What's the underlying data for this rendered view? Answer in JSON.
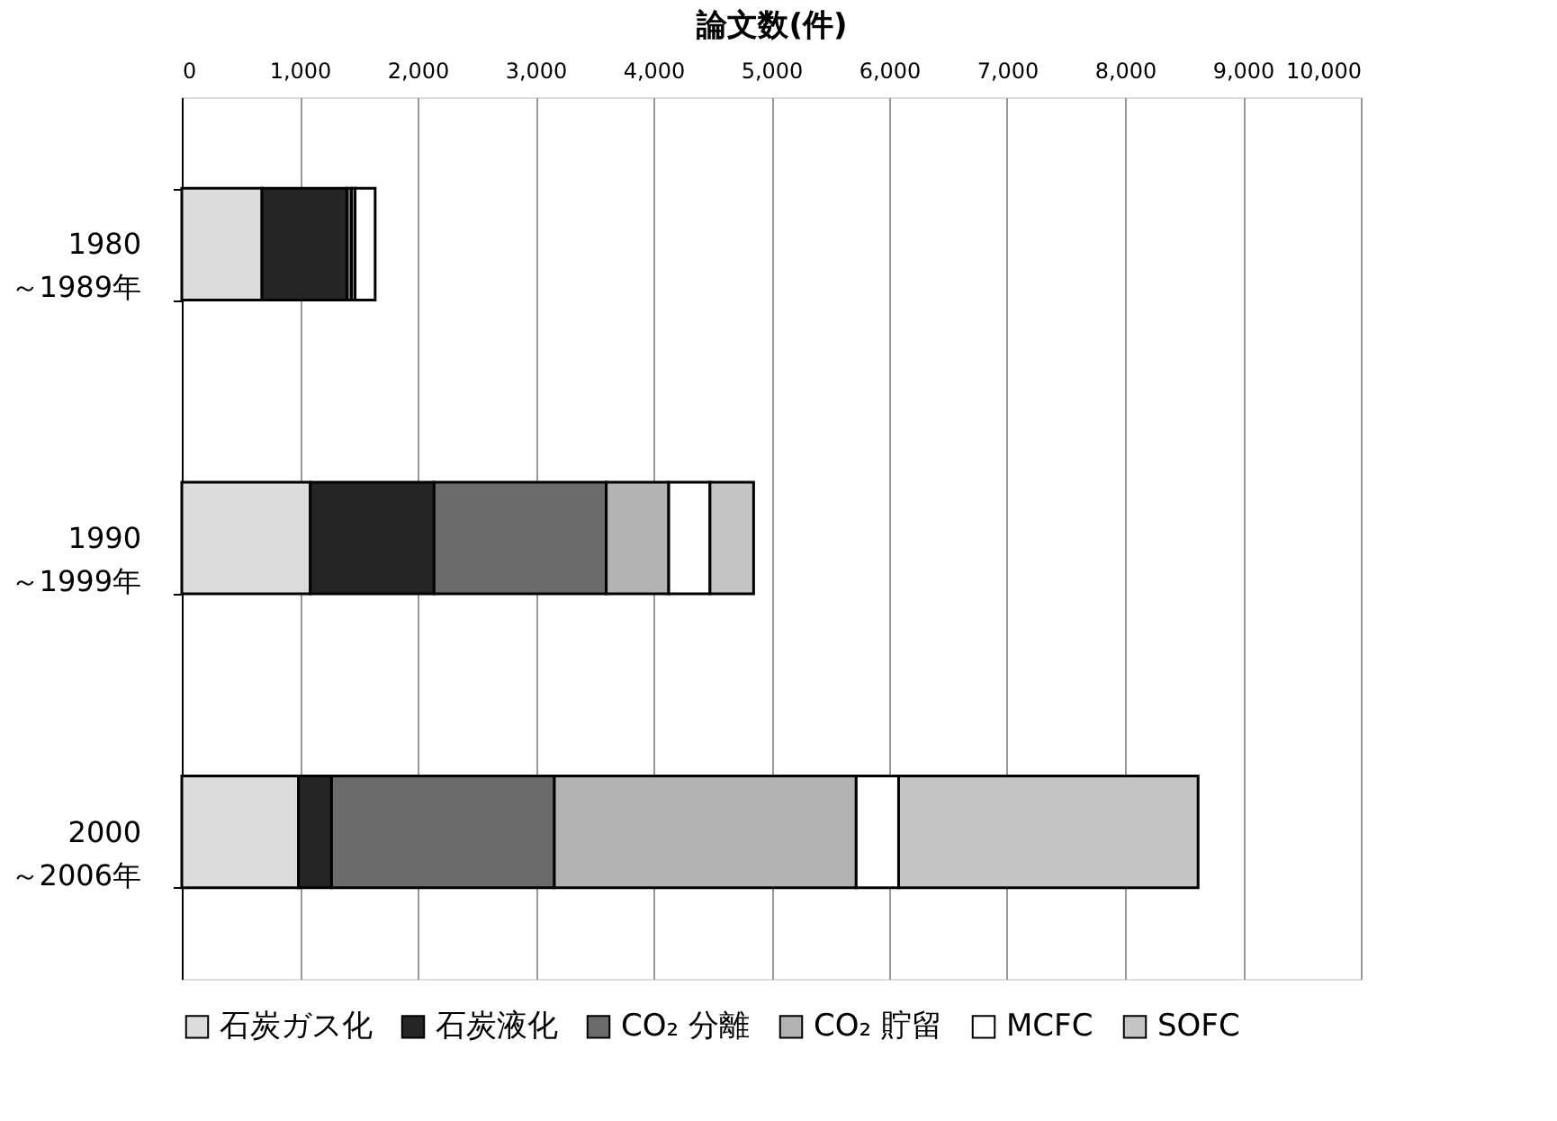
{
  "chart_data": {
    "type": "bar",
    "orientation": "horizontal",
    "stacked": true,
    "xlabel": "論文数(件)",
    "categories": [
      "1980\n～1989年",
      "1990\n～1999年",
      "2000\n～2006年"
    ],
    "series": [
      {
        "name": "石炭ガス化",
        "color": "#dcdcdc",
        "values": [
          680,
          1090,
          990
        ]
      },
      {
        "name": "石炭液化",
        "color": "#252525",
        "values": [
          720,
          1050,
          280
        ]
      },
      {
        "name": "CO₂ 分離",
        "color": "#6b6b6b",
        "values": [
          40,
          1460,
          1890
        ]
      },
      {
        "name": "CO₂ 貯留",
        "color": "#b3b3b3",
        "values": [
          30,
          530,
          2560
        ]
      },
      {
        "name": "MCFC",
        "color": "#ffffff",
        "values": [
          170,
          350,
          360
        ]
      },
      {
        "name": "SOFC",
        "color": "#c4c4c4",
        "values": [
          null,
          370,
          2540
        ]
      }
    ],
    "xlim": [
      0,
      10000
    ],
    "xticks": [
      0,
      {
        "value": 1000,
        "label": "1,000"
      },
      {
        "value": 2000,
        "label": "2,000"
      },
      {
        "value": 3000,
        "label": "3,000"
      },
      {
        "value": 4000,
        "label": "4,000"
      },
      {
        "value": 5000,
        "label": "5,000"
      },
      {
        "value": 6000,
        "label": "6,000"
      },
      {
        "value": 7000,
        "label": "7,000"
      },
      {
        "value": 8000,
        "label": "8,000"
      },
      {
        "value": 9000,
        "label": "9,000"
      },
      {
        "value": 10000,
        "label": "10,000"
      }
    ],
    "grid": "x",
    "legend": "bottom"
  }
}
